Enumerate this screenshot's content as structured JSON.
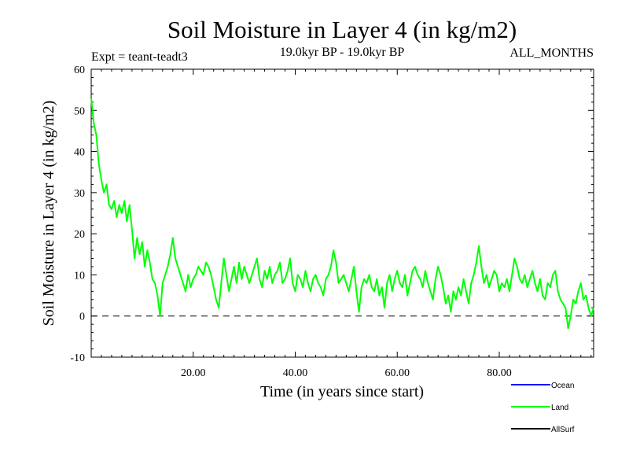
{
  "chart_data": {
    "type": "line",
    "title": "Soil Moisture in Layer 4 (in kg/m2)",
    "experiment_label": "Expt = teant-teadt3",
    "period_label": "19.0kyr BP - 19.0kyr BP",
    "months_label": "ALL_MONTHS",
    "xlabel": "Time (in years since start)",
    "ylabel": "Soil Moisture in Layer 4 (in kg/m2)",
    "xlim": [
      0,
      98.5
    ],
    "ylim": [
      -10,
      60
    ],
    "x_ticks": [
      {
        "value": 20,
        "label": "20.00"
      },
      {
        "value": 40,
        "label": "40.00"
      },
      {
        "value": 60,
        "label": "60.00"
      },
      {
        "value": 80,
        "label": "80.00"
      }
    ],
    "y_ticks": [
      {
        "value": 60,
        "label": "60"
      },
      {
        "value": 50,
        "label": "50"
      },
      {
        "value": 40,
        "label": "40"
      },
      {
        "value": 30,
        "label": "30"
      },
      {
        "value": 20,
        "label": "20"
      },
      {
        "value": 10,
        "label": "10"
      },
      {
        "value": 0,
        "label": "0"
      },
      {
        "value": -10,
        "label": "-10"
      }
    ],
    "reference_line": {
      "y": 0,
      "style": "dashed"
    },
    "legend": [
      {
        "name": "Ocean",
        "color": "#0000ff"
      },
      {
        "name": "Land",
        "color": "#00ff00"
      },
      {
        "name": "AllSurf",
        "color": "#000000"
      }
    ],
    "series": [
      {
        "name": "Land",
        "color": "#00ff00",
        "x": [
          0,
          0.5,
          1,
          1.5,
          2,
          2.5,
          3,
          3.5,
          4,
          4.5,
          5,
          5.5,
          6,
          6.5,
          7,
          7.5,
          8,
          8.5,
          9,
          9.5,
          10,
          10.5,
          11,
          11.5,
          12,
          12.5,
          13,
          13.5,
          14,
          14.5,
          15,
          15.5,
          16,
          16.5,
          17,
          17.5,
          18,
          18.5,
          19,
          19.5,
          20,
          20.5,
          21,
          21.5,
          22,
          22.5,
          23,
          23.5,
          24,
          24.5,
          25,
          25.5,
          26,
          26.5,
          27,
          27.5,
          28,
          28.5,
          29,
          29.5,
          30,
          30.5,
          31,
          31.5,
          32,
          32.5,
          33,
          33.5,
          34,
          34.5,
          35,
          35.5,
          36,
          36.5,
          37,
          37.5,
          38,
          38.5,
          39,
          39.5,
          40,
          40.5,
          41,
          41.5,
          42,
          42.5,
          43,
          43.5,
          44,
          44.5,
          45,
          45.5,
          46,
          46.5,
          47,
          47.5,
          48,
          48.5,
          49,
          49.5,
          50,
          50.5,
          51,
          51.5,
          52,
          52.5,
          53,
          53.5,
          54,
          54.5,
          55,
          55.5,
          56,
          56.5,
          57,
          57.5,
          58,
          58.5,
          59,
          59.5,
          60,
          60.5,
          61,
          61.5,
          62,
          62.5,
          63,
          63.5,
          64,
          64.5,
          65,
          65.5,
          66,
          66.5,
          67,
          67.5,
          68,
          68.5,
          69,
          69.5,
          70,
          70.5,
          71,
          71.5,
          72,
          72.5,
          73,
          73.5,
          74,
          74.5,
          75,
          75.5,
          76,
          76.5,
          77,
          77.5,
          78,
          78.5,
          79,
          79.5,
          80,
          80.5,
          81,
          81.5,
          82,
          82.5,
          83,
          83.5,
          84,
          84.5,
          85,
          85.5,
          86,
          86.5,
          87,
          87.5,
          88,
          88.5,
          89,
          89.5,
          90,
          90.5,
          91,
          91.5,
          92,
          92.5,
          93,
          93.5,
          94,
          94.5,
          95,
          95.5,
          96,
          96.5,
          97,
          97.5,
          98,
          98.5
        ],
        "values": [
          53,
          47,
          44,
          37,
          33,
          30,
          32,
          27,
          26,
          28,
          24,
          27,
          25,
          28,
          23,
          27,
          21,
          14,
          19,
          15,
          18,
          12,
          16,
          13,
          9,
          8,
          5,
          0,
          8,
          10,
          12,
          15,
          19,
          14,
          12,
          10,
          8,
          6,
          10,
          7,
          9,
          10,
          12,
          11,
          10,
          13,
          12,
          10,
          7,
          4,
          2,
          8,
          14,
          10,
          6,
          9,
          12,
          8,
          13,
          9,
          12,
          10,
          8,
          10,
          12,
          14,
          9,
          7,
          11,
          9,
          12,
          8,
          10,
          11,
          13,
          8,
          9,
          11,
          14,
          8,
          6,
          10,
          9,
          7,
          11,
          8,
          6,
          9,
          10,
          8,
          7,
          5,
          9,
          10,
          12,
          16,
          13,
          8,
          9,
          10,
          8,
          6,
          9,
          12,
          6,
          1,
          7,
          9,
          8,
          10,
          7,
          6,
          9,
          5,
          7,
          2,
          8,
          10,
          6,
          9,
          11,
          8,
          7,
          10,
          5,
          8,
          11,
          12,
          10,
          9,
          7,
          11,
          8,
          6,
          4,
          9,
          12,
          10,
          7,
          3,
          5,
          1,
          6,
          4,
          7,
          5,
          9,
          6,
          3,
          8,
          10,
          13,
          17,
          12,
          8,
          10,
          7,
          9,
          11,
          10,
          6,
          8,
          7,
          9,
          6,
          10,
          14,
          12,
          9,
          8,
          10,
          7,
          9,
          11,
          8,
          6,
          9,
          5,
          4,
          8,
          7,
          10,
          11,
          6,
          4,
          3,
          2,
          -3,
          0,
          4,
          3,
          6,
          8,
          4,
          5,
          2,
          0,
          2
        ]
      }
    ]
  }
}
